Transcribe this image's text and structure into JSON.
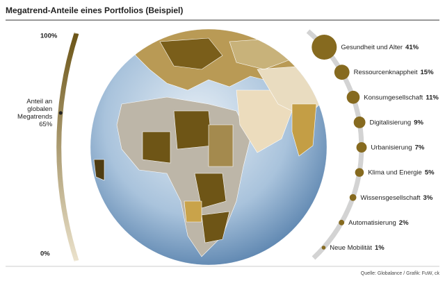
{
  "chart_data": {
    "type": "bubble",
    "title": "Megatrend-Anteile eines Portfolios (Beispiel)",
    "categories": [
      "Gesundheit und Alter",
      "Ressourcenknappheit",
      "Konsumgesellschaft",
      "Digitalisierung",
      "Urbanisierung",
      "Klima und Energie",
      "Wissensgesellschaft",
      "Automatisierung",
      "Neue Mobilität"
    ],
    "values": [
      41,
      15,
      11,
      9,
      7,
      5,
      3,
      2,
      1
    ],
    "value_labels": [
      "41%",
      "15%",
      "11%",
      "9%",
      "7%",
      "5%",
      "3%",
      "2%",
      "1%"
    ],
    "color": "#866a1f",
    "ylim": [
      0,
      100
    ],
    "yticks": [
      {
        "value": 0,
        "label": "0%"
      },
      {
        "value": 100,
        "label": "100%"
      }
    ],
    "annotation": {
      "lines": [
        "Anteil an",
        "globalen",
        "Megatrends"
      ],
      "value": 65,
      "value_label": "65%"
    },
    "source": "Quelle: Globalance / Grafik: FuW, ck"
  }
}
